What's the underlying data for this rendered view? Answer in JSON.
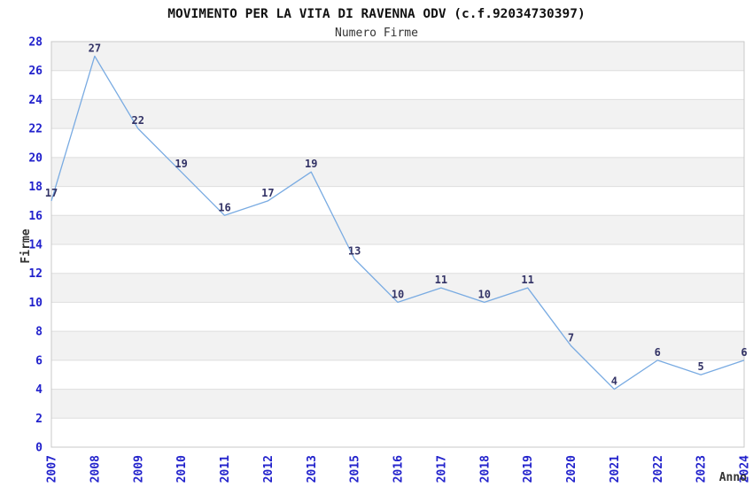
{
  "chart_data": {
    "type": "line",
    "title": "MOVIMENTO PER LA VITA DI RAVENNA ODV (c.f.92034730397)",
    "subtitle": "Numero Firme",
    "xlabel": "Anno",
    "ylabel": "Firme",
    "categories": [
      "2007",
      "2008",
      "2009",
      "2010",
      "2011",
      "2012",
      "2013",
      "2015",
      "2016",
      "2017",
      "2018",
      "2019",
      "2020",
      "2021",
      "2022",
      "2023",
      "2024"
    ],
    "values": [
      17,
      27,
      22,
      19,
      16,
      17,
      19,
      13,
      10,
      11,
      10,
      11,
      7,
      4,
      6,
      5,
      6
    ],
    "ylim": [
      0,
      28
    ],
    "ytick_step": 2,
    "grid": "horizontal-bands",
    "legend": "none",
    "point_markers": "none",
    "colors": {
      "line": "#79ABE2",
      "tick_label": "#2222CC",
      "value_label": "#333366",
      "band": "#F2F2F2",
      "gridline": "#DEDEDE",
      "plot_border": "#C9C9C9",
      "title": "#111111",
      "subtitle": "#333333",
      "axis_title": "#333333",
      "background": "#FFFFFF"
    }
  }
}
